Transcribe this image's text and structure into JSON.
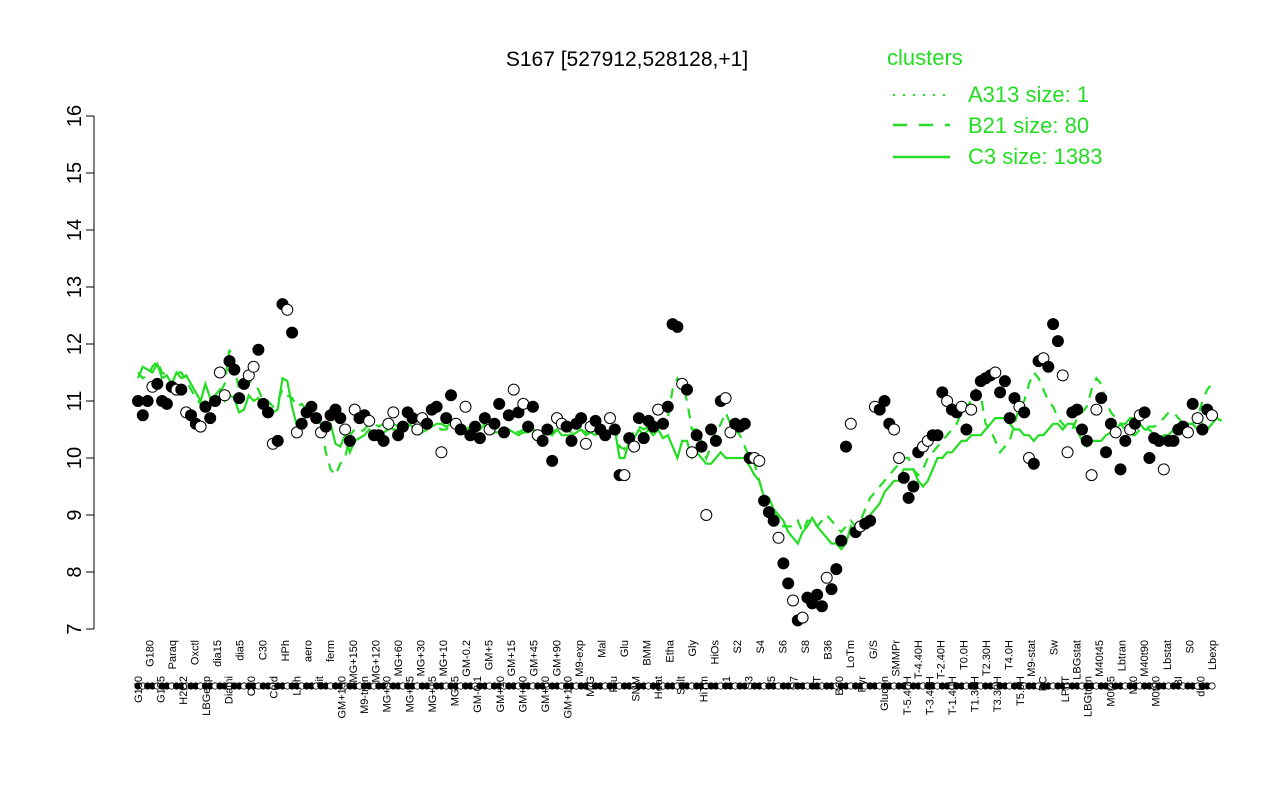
{
  "chart_data": {
    "type": "scatter",
    "title": "S167 [527912,528128,+1]",
    "xlabel": "",
    "ylabel": "",
    "ylim": [
      7,
      16
    ],
    "yticks": [
      7,
      8,
      9,
      10,
      11,
      12,
      13,
      14,
      15,
      16
    ],
    "xtick_labels": [
      "G150",
      "G180",
      "G135",
      "Paraq",
      "H2O2",
      "Oxctl",
      "LBGexp",
      "dia15",
      "Diami",
      "dia5",
      "C90",
      "C30",
      "Cold",
      "HPh",
      "LPh",
      "aero",
      "nit",
      "ferm",
      "GM+150",
      "MG+150",
      "M9-tran",
      "MG+120",
      "MG+90",
      "MG+60",
      "MG+45",
      "MG+30",
      "MG+15",
      "MG+10",
      "MG+5",
      "GM-0.2",
      "GM-0.1",
      "GM+5",
      "GM+10",
      "GM+15",
      "GM+30",
      "GM+45",
      "GM+60",
      "GM+90",
      "GM+120",
      "M9-exp",
      "M/G",
      "Mal",
      "Fru",
      "Glu",
      "SMM",
      "BMM",
      "Heat",
      "Etha",
      "Salt",
      "Gly",
      "HiTm",
      "HiOs",
      "S1",
      "S2",
      "S3",
      "S4",
      "S5",
      "S6",
      "S7",
      "S8",
      "BT",
      "B36",
      "B60",
      "LoTm",
      "Pyr",
      "G/S",
      "Glucon",
      "SMMPr",
      "T-5.40H",
      "T-4.40H",
      "T-3.40H",
      "T-2.40H",
      "T-1.40H",
      "T0.0H",
      "T1.30H",
      "T2.30H",
      "T3.30H",
      "T4.0H",
      "T5.0H",
      "M9-stat",
      "BC",
      "Sw",
      "LPhT",
      "LBGstat",
      "LBGtran",
      "M40t45",
      "M0t45",
      "Lbtran",
      "Mt0",
      "M40t90",
      "M0t90",
      "Lbstat",
      "BI",
      "S0",
      "dia0",
      "Lbexp"
    ],
    "legend": {
      "title": "clusters",
      "placement": "top-right",
      "entries": [
        {
          "label": "A313 size: 1",
          "style": "dotted"
        },
        {
          "label": "B21 size: 80",
          "style": "dashed"
        },
        {
          "label": "C3 size: 1383",
          "style": "solid"
        }
      ]
    },
    "colors": {
      "lines": "#22dd22",
      "points_filled": "#000000",
      "points_open": "#ffffff"
    },
    "points_y": [
      11.0,
      10.75,
      11.0,
      11.25,
      11.3,
      11.0,
      10.95,
      11.25,
      11.2,
      11.2,
      10.8,
      10.75,
      10.6,
      10.55,
      10.9,
      10.7,
      11.0,
      11.5,
      11.1,
      11.7,
      11.55,
      11.05,
      11.3,
      11.45,
      11.6,
      11.9,
      10.95,
      10.8,
      10.25,
      10.3,
      12.7,
      12.6,
      12.2,
      10.45,
      10.6,
      10.8,
      10.9,
      10.7,
      10.45,
      10.55,
      10.75,
      10.85,
      10.7,
      10.5,
      10.3,
      10.85,
      10.7,
      10.75,
      10.65,
      10.4,
      10.4,
      10.3,
      10.6,
      10.8,
      10.4,
      10.55,
      10.8,
      10.7,
      10.5,
      10.7,
      10.6,
      10.85,
      10.9,
      10.1,
      10.7,
      11.1,
      10.6,
      10.5,
      10.9,
      10.4,
      10.55,
      10.35,
      10.7,
      10.5,
      10.6,
      10.95,
      10.45,
      10.75,
      11.2,
      10.8,
      10.95,
      10.55,
      10.9,
      10.4,
      10.3,
      10.5,
      9.95,
      10.7,
      10.6,
      10.55,
      10.3,
      10.6,
      10.7,
      10.25,
      10.55,
      10.65,
      10.5,
      10.4,
      10.7,
      10.5,
      9.7,
      9.7,
      10.35,
      10.2,
      10.7,
      10.35,
      10.65,
      10.55,
      10.85,
      10.6,
      10.9,
      12.35,
      12.3,
      11.3,
      11.2,
      10.1,
      10.4,
      10.2,
      9.0,
      10.5,
      10.3,
      11.0,
      11.05,
      10.45,
      10.6,
      10.55,
      10.6,
      10.0,
      10.0,
      9.95,
      9.25,
      9.05,
      8.9,
      8.6,
      8.15,
      7.8,
      7.5,
      7.15,
      7.2,
      7.55,
      7.45,
      7.6,
      7.4,
      7.9,
      7.7,
      8.05,
      8.55,
      10.2,
      10.6,
      8.7,
      8.8,
      8.85,
      8.9,
      10.9,
      10.85,
      11.0,
      10.6,
      10.5,
      10.0,
      9.65,
      9.3,
      9.5,
      10.1,
      10.2,
      10.3,
      10.4,
      10.4,
      11.15,
      11.0,
      10.85,
      10.8,
      10.9,
      10.5,
      10.85,
      11.1,
      11.35,
      11.4,
      11.45,
      11.5,
      11.15,
      11.35,
      10.7,
      11.05,
      10.9,
      10.8,
      10.0,
      9.9,
      11.7,
      11.75,
      11.6,
      12.35,
      12.05,
      11.45,
      10.1,
      10.8,
      10.85,
      10.5,
      10.3,
      9.7,
      10.85,
      11.05,
      10.1,
      10.6,
      10.45,
      9.8,
      10.3,
      10.5,
      10.6,
      10.75,
      10.8,
      10.0,
      10.35,
      10.3,
      9.8,
      10.3,
      10.3,
      10.5,
      10.55,
      10.45,
      10.95,
      10.7,
      10.5,
      10.85,
      10.75
    ],
    "c3_line_y": [
      11.4,
      11.6,
      11.55,
      11.5,
      11.65,
      11.4,
      11.45,
      11.3,
      11.5,
      11.4,
      11.45,
      11.3,
      11.15,
      11.0,
      11.3,
      11.05,
      11.1,
      11.2,
      11.0,
      11.1,
      11.05,
      10.8,
      10.85,
      11.1,
      11.0,
      11.05,
      10.9,
      10.85,
      10.8,
      10.85,
      11.4,
      11.35,
      10.9,
      10.55,
      10.6,
      10.75,
      10.8,
      10.65,
      10.6,
      10.55,
      10.6,
      10.25,
      10.2,
      10.4,
      10.1,
      10.3,
      10.35,
      10.4,
      10.5,
      10.4,
      10.35,
      10.45,
      10.5,
      10.6,
      10.55,
      10.5,
      10.6,
      10.55,
      10.5,
      10.45,
      10.5,
      10.55,
      10.6,
      10.6,
      10.55,
      10.6,
      10.55,
      10.5,
      10.5,
      10.55,
      10.5,
      10.5,
      10.6,
      10.5,
      10.45,
      10.45,
      10.45,
      10.5,
      10.45,
      10.4,
      10.45,
      10.45,
      10.5,
      10.45,
      10.4,
      10.45,
      10.4,
      10.5,
      10.4,
      10.4,
      10.4,
      10.45,
      10.5,
      10.4,
      10.45,
      10.4,
      10.5,
      10.45,
      10.5,
      10.5,
      10.0,
      10.0,
      10.3,
      10.35,
      10.5,
      10.4,
      10.5,
      10.4,
      10.5,
      10.35,
      10.4,
      10.2,
      10.0,
      10.3,
      10.3,
      10.0,
      10.1,
      10.0,
      9.9,
      9.9,
      10.0,
      10.1,
      10.0,
      10.0,
      10.0,
      10.0,
      10.0,
      9.85,
      9.7,
      9.6,
      9.3,
      9.3,
      9.1,
      9.0,
      8.9,
      8.7,
      8.6,
      8.5,
      8.7,
      8.8,
      8.95,
      8.8,
      8.7,
      8.6,
      8.5,
      8.5,
      8.4,
      8.5,
      8.8,
      8.7,
      8.8,
      8.9,
      9.0,
      9.1,
      9.2,
      9.4,
      9.5,
      9.6,
      9.6,
      9.8,
      9.8,
      9.8,
      9.6,
      9.5,
      9.6,
      9.8,
      10.0,
      10.0,
      10.1,
      10.1,
      10.2,
      10.3,
      10.3,
      10.4,
      10.4,
      10.4,
      10.5,
      10.6,
      10.7,
      10.7,
      10.7,
      10.6,
      10.5,
      10.5,
      10.4,
      10.4,
      10.3,
      10.4,
      10.4,
      10.5,
      10.6,
      10.6,
      10.5,
      10.6,
      10.6,
      10.5,
      10.3,
      10.2,
      10.3,
      10.3,
      10.3,
      10.4,
      10.45,
      10.5,
      10.6,
      10.6,
      10.7,
      10.7,
      10.6,
      10.5,
      10.5,
      10.4,
      10.3,
      10.4,
      10.4,
      10.5,
      10.5,
      10.5,
      10.6,
      10.6,
      10.5,
      10.6,
      10.5,
      10.6,
      10.7,
      10.65
    ],
    "b21_line_y": [
      11.5,
      11.4,
      11.45,
      11.6,
      11.7,
      11.5,
      11.45,
      11.3,
      11.5,
      11.5,
      11.35,
      11.2,
      11.05,
      10.95,
      11.0,
      10.9,
      11.0,
      11.15,
      11.3,
      11.9,
      11.6,
      11.2,
      11.3,
      11.35,
      11.3,
      11.2,
      11.0,
      11.0,
      10.9,
      11.0,
      11.2,
      11.1,
      11.05,
      10.9,
      10.95,
      10.85,
      10.8,
      10.75,
      10.6,
      10.1,
      9.8,
      9.7,
      9.9,
      10.0,
      10.4,
      10.5,
      10.45,
      10.5,
      10.6,
      10.6,
      10.55,
      10.6,
      10.55,
      10.5,
      10.5,
      10.55,
      10.6,
      10.55,
      10.5,
      10.5,
      10.55,
      10.6,
      10.55,
      10.5,
      10.5,
      10.6,
      10.5,
      10.45,
      10.5,
      10.5,
      10.45,
      10.45,
      10.5,
      10.45,
      10.45,
      10.5,
      10.45,
      10.5,
      10.5,
      10.45,
      10.5,
      10.45,
      10.5,
      10.45,
      10.5,
      10.45,
      10.45,
      10.5,
      10.45,
      10.5,
      10.45,
      10.45,
      10.5,
      10.45,
      10.45,
      10.45,
      10.5,
      10.45,
      10.5,
      10.5,
      10.2,
      10.15,
      10.4,
      10.45,
      10.55,
      10.5,
      10.55,
      10.55,
      10.6,
      10.6,
      10.7,
      11.2,
      11.4,
      11.3,
      11.0,
      10.5,
      10.5,
      10.3,
      10.0,
      10.2,
      10.45,
      10.6,
      10.8,
      10.6,
      10.5,
      10.4,
      10.2,
      10.0,
      9.9,
      9.6,
      9.3,
      9.2,
      9.1,
      8.9,
      8.8,
      8.8,
      8.8,
      8.9,
      8.7,
      8.9,
      8.9,
      8.8,
      8.9,
      9.0,
      8.9,
      8.8,
      8.7,
      8.8,
      8.9,
      8.8,
      8.9,
      9.1,
      9.3,
      9.4,
      9.5,
      9.6,
      9.7,
      9.8,
      9.9,
      10.0,
      10.0,
      9.8,
      9.7,
      9.8,
      10.0,
      10.1,
      10.2,
      10.3,
      10.4,
      10.5,
      10.6,
      10.8,
      10.9,
      11.0,
      11.2,
      11.1,
      10.6,
      10.5,
      10.3,
      10.1,
      10.2,
      10.3,
      10.6,
      10.9,
      11.0,
      11.3,
      11.5,
      11.4,
      11.2,
      11.0,
      10.9,
      10.7,
      10.6,
      10.5,
      10.5,
      10.7,
      10.8,
      10.9,
      11.2,
      11.4,
      11.3,
      11.0,
      10.8,
      10.7,
      10.6,
      10.5,
      10.4,
      10.4,
      10.5,
      10.5,
      10.55,
      10.55,
      10.6,
      10.7,
      10.8,
      10.8,
      10.7,
      10.6,
      10.6,
      10.6,
      10.7,
      11.0,
      11.2,
      11.3
    ]
  }
}
